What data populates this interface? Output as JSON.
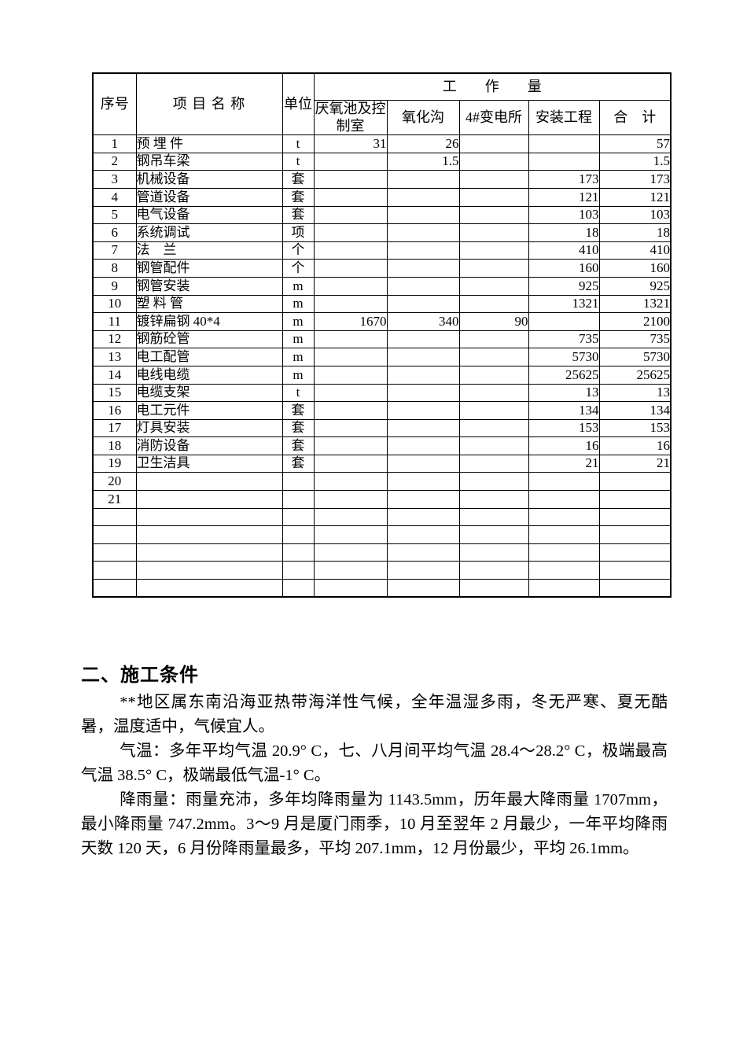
{
  "table": {
    "header": {
      "seq": "序号",
      "item_name": "项 目 名 称",
      "unit": "单位",
      "workload": "工　　作　　量",
      "sub_columns": [
        "厌氧池及控制室",
        "氧化沟",
        "4#变电所",
        "安装工程",
        "合　计"
      ]
    },
    "rows": [
      {
        "seq": "1",
        "name": "预 埋 件",
        "unit": "t",
        "values": [
          "31",
          "26",
          "",
          "",
          "57"
        ]
      },
      {
        "seq": "2",
        "name": "钢吊车梁",
        "unit": "t",
        "values": [
          "",
          "1.5",
          "",
          "",
          "1.5"
        ]
      },
      {
        "seq": "3",
        "name": "机械设备",
        "unit": "套",
        "values": [
          "",
          "",
          "",
          "173",
          "173"
        ]
      },
      {
        "seq": "4",
        "name": "管道设备",
        "unit": "套",
        "values": [
          "",
          "",
          "",
          "121",
          "121"
        ]
      },
      {
        "seq": "5",
        "name": "电气设备",
        "unit": "套",
        "values": [
          "",
          "",
          "",
          "103",
          "103"
        ]
      },
      {
        "seq": "6",
        "name": "系统调试",
        "unit": "项",
        "values": [
          "",
          "",
          "",
          "18",
          "18"
        ]
      },
      {
        "seq": "7",
        "name": "法　兰",
        "unit": "个",
        "values": [
          "",
          "",
          "",
          "410",
          "410"
        ]
      },
      {
        "seq": "8",
        "name": "钢管配件",
        "unit": "个",
        "values": [
          "",
          "",
          "",
          "160",
          "160"
        ]
      },
      {
        "seq": "9",
        "name": "钢管安装",
        "unit": "m",
        "values": [
          "",
          "",
          "",
          "925",
          "925"
        ]
      },
      {
        "seq": "10",
        "name": "塑 料 管",
        "unit": "m",
        "values": [
          "",
          "",
          "",
          "1321",
          "1321"
        ]
      },
      {
        "seq": "11",
        "name": "镀锌扁钢 40*4",
        "unit": "m",
        "values": [
          "1670",
          "340",
          "90",
          "",
          "2100"
        ]
      },
      {
        "seq": "12",
        "name": "钢筋砼管",
        "unit": "m",
        "values": [
          "",
          "",
          "",
          "735",
          "735"
        ]
      },
      {
        "seq": "13",
        "name": "电工配管",
        "unit": "m",
        "values": [
          "",
          "",
          "",
          "5730",
          "5730"
        ]
      },
      {
        "seq": "14",
        "name": "电线电缆",
        "unit": "m",
        "values": [
          "",
          "",
          "",
          "25625",
          "25625"
        ]
      },
      {
        "seq": "15",
        "name": "电缆支架",
        "unit": "t",
        "values": [
          "",
          "",
          "",
          "13",
          "13"
        ]
      },
      {
        "seq": "16",
        "name": "电工元件",
        "unit": "套",
        "values": [
          "",
          "",
          "",
          "134",
          "134"
        ]
      },
      {
        "seq": "17",
        "name": "灯具安装",
        "unit": "套",
        "values": [
          "",
          "",
          "",
          "153",
          "153"
        ]
      },
      {
        "seq": "18",
        "name": "消防设备",
        "unit": "套",
        "values": [
          "",
          "",
          "",
          "16",
          "16"
        ]
      },
      {
        "seq": "19",
        "name": "卫生洁具",
        "unit": "套",
        "values": [
          "",
          "",
          "",
          "21",
          "21"
        ]
      },
      {
        "seq": "20",
        "name": "",
        "unit": "",
        "values": [
          "",
          "",
          "",
          "",
          ""
        ]
      },
      {
        "seq": "21",
        "name": "",
        "unit": "",
        "values": [
          "",
          "",
          "",
          "",
          ""
        ]
      },
      {
        "seq": "",
        "name": "",
        "unit": "",
        "values": [
          "",
          "",
          "",
          "",
          ""
        ]
      },
      {
        "seq": "",
        "name": "",
        "unit": "",
        "values": [
          "",
          "",
          "",
          "",
          ""
        ]
      },
      {
        "seq": "",
        "name": "",
        "unit": "",
        "values": [
          "",
          "",
          "",
          "",
          ""
        ]
      },
      {
        "seq": "",
        "name": "",
        "unit": "",
        "values": [
          "",
          "",
          "",
          "",
          ""
        ]
      },
      {
        "seq": "",
        "name": "",
        "unit": "",
        "values": [
          "",
          "",
          "",
          "",
          ""
        ]
      }
    ]
  },
  "section": {
    "heading": "二、施工条件",
    "paragraphs": [
      "**地区属东南沿海亚热带海洋性气候，全年温湿多雨，冬无严寒、夏无酷暑，温度适中，气候宜人。",
      "气温：多年平均气温 20.9° C，七、八月间平均气温 28.4～28.2° C，极端最高气温 38.5° C，极端最低气温-1° C。",
      "降雨量：雨量充沛，多年均降雨量为 1143.5mm，历年最大降雨量 1707mm，最小降雨量 747.2mm。3～9 月是厦门雨季，10 月至翌年 2 月最少，一年平均降雨天数 120 天，6 月份降雨量最多，平均 207.1mm，12 月份最少，平均 26.1mm。"
    ]
  }
}
